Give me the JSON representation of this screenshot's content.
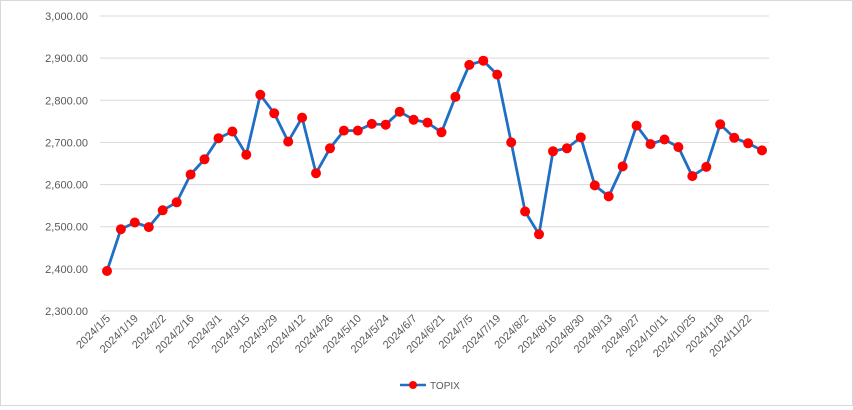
{
  "chart_data": {
    "type": "line",
    "ylim": [
      2300,
      3000
    ],
    "y_ticks": [
      "2,300.00",
      "2,400.00",
      "2,500.00",
      "2,600.00",
      "2,700.00",
      "2,800.00",
      "2,900.00",
      "3,000.00"
    ],
    "y_tick_values": [
      2300,
      2400,
      2500,
      2600,
      2700,
      2800,
      2900,
      3000
    ],
    "grid": true,
    "legend_position": "bottom",
    "x": [
      "2024/1/5",
      "2024/1/12",
      "2024/1/19",
      "2024/1/26",
      "2024/2/2",
      "2024/2/9",
      "2024/2/16",
      "2024/2/23",
      "2024/3/1",
      "2024/3/8",
      "2024/3/15",
      "2024/3/22",
      "2024/3/29",
      "2024/4/5",
      "2024/4/12",
      "2024/4/19",
      "2024/4/26",
      "2024/5/3",
      "2024/5/10",
      "2024/5/17",
      "2024/5/24",
      "2024/5/31",
      "2024/6/7",
      "2024/6/14",
      "2024/6/21",
      "2024/6/28",
      "2024/7/5",
      "2024/7/12",
      "2024/7/19",
      "2024/7/26",
      "2024/8/2",
      "2024/8/9",
      "2024/8/16",
      "2024/8/23",
      "2024/8/30",
      "2024/9/6",
      "2024/9/13",
      "2024/9/20",
      "2024/9/27",
      "2024/10/4",
      "2024/10/11",
      "2024/10/18",
      "2024/10/25",
      "2024/11/1",
      "2024/11/8",
      "2024/11/15",
      "2024/11/22",
      "2024/11/29"
    ],
    "x_tick_labels": [
      "2024/1/5",
      "2024/1/19",
      "2024/2/2",
      "2024/2/16",
      "2024/3/1",
      "2024/3/15",
      "2024/3/29",
      "2024/4/12",
      "2024/4/26",
      "2024/5/10",
      "2024/5/24",
      "2024/6/7",
      "2024/6/21",
      "2024/7/5",
      "2024/7/19",
      "2024/8/2",
      "2024/8/16",
      "2024/8/30",
      "2024/9/13",
      "2024/9/27",
      "2024/10/11",
      "2024/10/25",
      "2024/11/8",
      "2024/11/22"
    ],
    "series": [
      {
        "name": "TOPIX",
        "color": "#1f6fc5",
        "marker_color": "#ff0000",
        "values": [
          2395,
          2494,
          2510,
          2499,
          2539,
          2558,
          2624,
          2660,
          2710,
          2726,
          2671,
          2813,
          2769,
          2702,
          2759,
          2627,
          2686,
          2728,
          2728,
          2744,
          2742,
          2773,
          2754,
          2747,
          2724,
          2808,
          2884,
          2894,
          2861,
          2700,
          2536,
          2482,
          2679,
          2686,
          2712,
          2598,
          2572,
          2643,
          2740,
          2696,
          2707,
          2689,
          2620,
          2642,
          2743,
          2711,
          2698,
          2681
        ]
      }
    ]
  }
}
